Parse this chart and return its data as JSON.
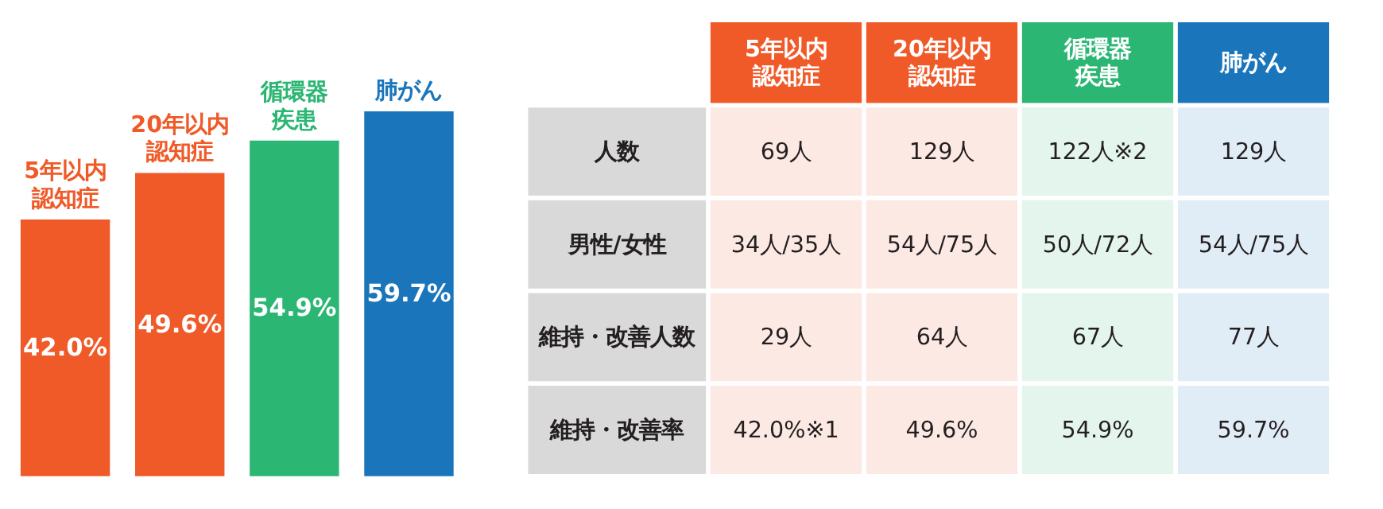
{
  "chart_data": [
    {
      "type": "bar",
      "categories": [
        "5年以内認知症",
        "20年以内認知症",
        "循環器疾患",
        "肺がん"
      ],
      "values": [
        42.0,
        49.6,
        54.9,
        59.7
      ],
      "colors": [
        "#f05a28",
        "#f05a28",
        "#2bb673",
        "#1a75bb"
      ],
      "value_labels": [
        "42.0%",
        "49.6%",
        "54.9%",
        "59.7%"
      ]
    },
    {
      "type": "other",
      "colors": [
        "#f05a28",
        "#f05a28",
        "#2bb673",
        "#1a75bb"
      ],
      "annotations": [
        "5年以内認知症",
        "20年以内認知症",
        "循環器疾患",
        "肺がん",
        "人数",
        "69人",
        "129人",
        "122人※2",
        "129人",
        "男性/女性",
        "34人/35人",
        "54人/75人",
        "50人/72人",
        "54人/75人",
        "維持・改善人数",
        "29人",
        "64人",
        "67人",
        "77人",
        "維持・改善率",
        "42.0%※1",
        "49.6%",
        "54.9%",
        "59.7%"
      ]
    }
  ]
}
